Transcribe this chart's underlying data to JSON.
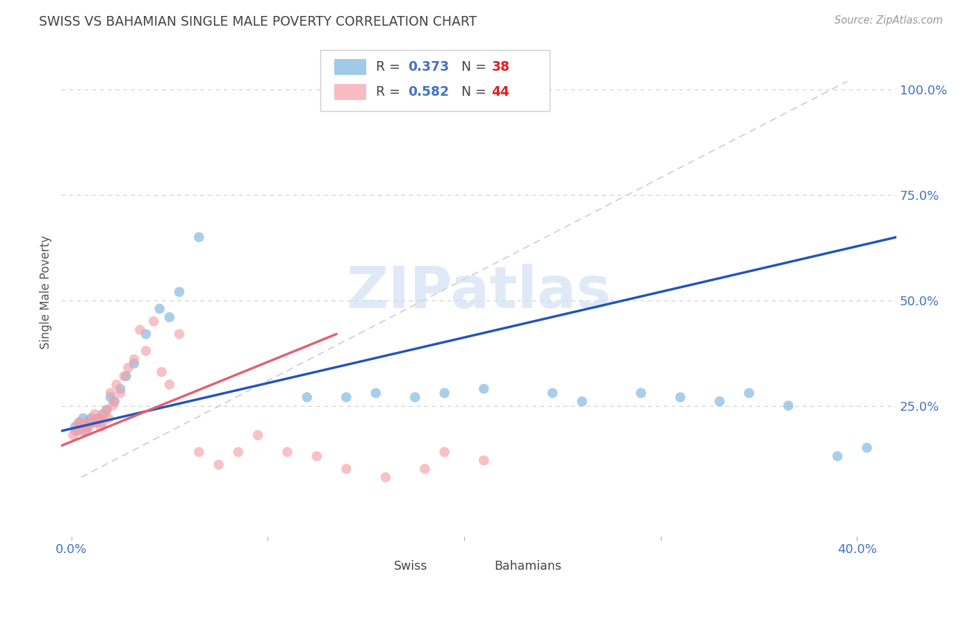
{
  "title": "SWISS VS BAHAMIAN SINGLE MALE POVERTY CORRELATION CHART",
  "source": "Source: ZipAtlas.com",
  "ylabel": "Single Male Poverty",
  "ytick_labels": [
    "100.0%",
    "75.0%",
    "50.0%",
    "25.0%"
  ],
  "ytick_values": [
    1.0,
    0.75,
    0.5,
    0.25
  ],
  "xlim": [
    -0.005,
    0.42
  ],
  "ylim": [
    -0.06,
    1.1
  ],
  "swiss_color": "#7ab4e0",
  "bahamas_color": "#f4a0a8",
  "swiss_line_color": "#2255bb",
  "bahamas_line_color": "#e06070",
  "diag_color": "#cccccc",
  "watermark_color": "#ccddf0",
  "swiss_R": "0.373",
  "swiss_N": "38",
  "bahamas_R": "0.582",
  "bahamas_N": "44",
  "legend_label_swiss": "Swiss",
  "legend_label_bahamas": "Bahamians",
  "watermark": "ZIPatlas",
  "title_color": "#444444",
  "axis_tick_color": "#4472c4",
  "grid_color": "#cccccc",
  "background_color": "#ffffff",
  "swiss_x": [
    0.002,
    0.003,
    0.004,
    0.005,
    0.006,
    0.007,
    0.008,
    0.009,
    0.01,
    0.012,
    0.014,
    0.016,
    0.018,
    0.02,
    0.022,
    0.025,
    0.028,
    0.032,
    0.038,
    0.045,
    0.05,
    0.055,
    0.065,
    0.12,
    0.14,
    0.155,
    0.175,
    0.19,
    0.21,
    0.245,
    0.26,
    0.29,
    0.31,
    0.33,
    0.345,
    0.365,
    0.39,
    0.405
  ],
  "swiss_y": [
    0.2,
    0.19,
    0.21,
    0.2,
    0.22,
    0.19,
    0.2,
    0.21,
    0.22,
    0.21,
    0.22,
    0.23,
    0.24,
    0.27,
    0.26,
    0.29,
    0.32,
    0.35,
    0.42,
    0.48,
    0.46,
    0.52,
    0.65,
    0.27,
    0.27,
    0.28,
    0.27,
    0.28,
    0.29,
    0.28,
    0.26,
    0.28,
    0.27,
    0.26,
    0.28,
    0.25,
    0.13,
    0.15
  ],
  "bahamas_x": [
    0.001,
    0.002,
    0.003,
    0.004,
    0.005,
    0.006,
    0.007,
    0.008,
    0.009,
    0.01,
    0.011,
    0.012,
    0.013,
    0.014,
    0.015,
    0.016,
    0.017,
    0.018,
    0.019,
    0.02,
    0.021,
    0.022,
    0.023,
    0.025,
    0.027,
    0.029,
    0.032,
    0.035,
    0.038,
    0.042,
    0.046,
    0.05,
    0.055,
    0.065,
    0.075,
    0.085,
    0.095,
    0.11,
    0.125,
    0.14,
    0.16,
    0.18,
    0.19,
    0.21
  ],
  "bahamas_y": [
    0.18,
    0.19,
    0.2,
    0.21,
    0.19,
    0.2,
    0.21,
    0.19,
    0.2,
    0.21,
    0.22,
    0.23,
    0.21,
    0.22,
    0.2,
    0.21,
    0.23,
    0.24,
    0.22,
    0.28,
    0.25,
    0.26,
    0.3,
    0.28,
    0.32,
    0.34,
    0.36,
    0.43,
    0.38,
    0.45,
    0.33,
    0.3,
    0.42,
    0.14,
    0.11,
    0.14,
    0.18,
    0.14,
    0.13,
    0.1,
    0.08,
    0.1,
    0.14,
    0.12
  ],
  "swiss_line_x": [
    -0.005,
    0.42
  ],
  "swiss_line_y": [
    0.19,
    0.65
  ],
  "bahamas_line_x": [
    -0.005,
    0.135
  ],
  "bahamas_line_y": [
    0.155,
    0.42
  ],
  "diag_line_x": [
    0.005,
    0.395
  ],
  "diag_line_y": [
    0.08,
    1.02
  ]
}
